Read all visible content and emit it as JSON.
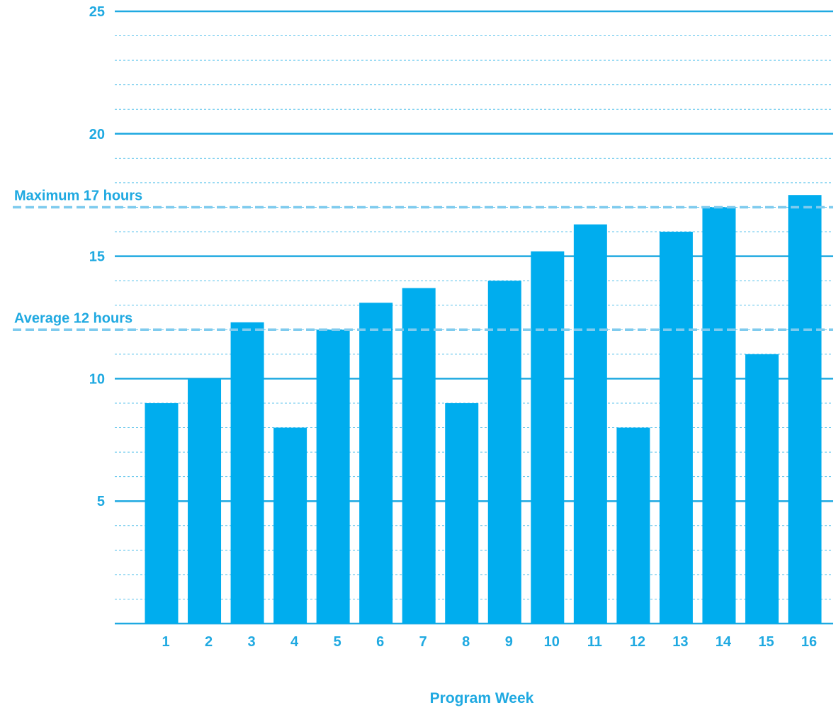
{
  "chart_data": {
    "type": "bar",
    "title": "",
    "xlabel": "Program Week",
    "ylabel": "",
    "categories": [
      "1",
      "2",
      "3",
      "4",
      "5",
      "6",
      "7",
      "8",
      "9",
      "10",
      "11",
      "12",
      "13",
      "14",
      "15",
      "16"
    ],
    "values": [
      9,
      10,
      12.3,
      8,
      12,
      13.1,
      13.7,
      9,
      14,
      15.2,
      16.3,
      8,
      16,
      17,
      11,
      17.5
    ],
    "ylim": [
      0,
      25
    ],
    "yticks": [
      "5",
      "10",
      "15",
      "20",
      "25"
    ],
    "grid": true,
    "reference_lines": [
      {
        "label": "Maximum 17 hours",
        "value": 17
      },
      {
        "label": "Average 12 hours",
        "value": 12
      }
    ],
    "colors": {
      "bar": "#00adee",
      "grid_major": "#1fa9e1",
      "grid_minor": "#5bc3ec",
      "reference": "#7fcbee",
      "text": "#1fa9e1"
    }
  }
}
